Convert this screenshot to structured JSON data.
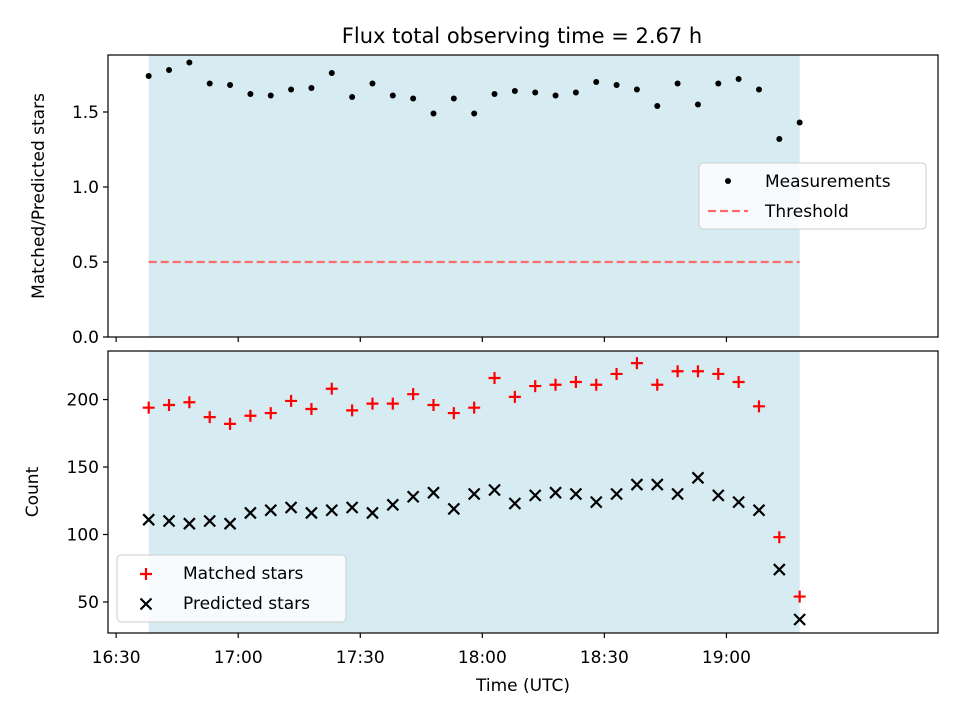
{
  "title": "Flux total observing time = 2.67 h",
  "colors": {
    "shade": "#add8e6",
    "measurement": "#000000",
    "threshold": "#ff6b6b",
    "matched": "#ff0000",
    "predicted": "#000000"
  },
  "chart_data": [
    {
      "type": "scatter",
      "panel": "top",
      "ylabel": "Matched/Predicted stars",
      "xlabel": "",
      "xlim": [
        "16:28",
        "19:52"
      ],
      "ylim": [
        0,
        1.88
      ],
      "yticks": [
        0.0,
        0.5,
        1.0,
        1.5
      ],
      "ytick_labels": [
        "0.0",
        "0.5",
        "1.0",
        "1.5"
      ],
      "xticks": [
        "16:30",
        "17:00",
        "17:30",
        "18:00",
        "18:30",
        "19:00"
      ],
      "shaded_span": [
        "16:38",
        "19:18"
      ],
      "legend": {
        "placement": "center-right",
        "entries": [
          "Measurements",
          "Threshold"
        ]
      },
      "threshold": {
        "name": "Threshold",
        "y": 0.5,
        "style": "dashed"
      },
      "series": [
        {
          "name": "Measurements",
          "marker": "dot",
          "x": [
            "16:38",
            "16:43",
            "16:48",
            "16:53",
            "16:58",
            "17:03",
            "17:08",
            "17:13",
            "17:18",
            "17:23",
            "17:28",
            "17:33",
            "17:38",
            "17:43",
            "17:48",
            "17:53",
            "17:58",
            "18:03",
            "18:08",
            "18:13",
            "18:18",
            "18:23",
            "18:28",
            "18:33",
            "18:38",
            "18:43",
            "18:48",
            "18:53",
            "18:58",
            "19:03",
            "19:08",
            "19:13",
            "19:18"
          ],
          "y": [
            1.74,
            1.78,
            1.83,
            1.69,
            1.68,
            1.62,
            1.61,
            1.65,
            1.66,
            1.76,
            1.6,
            1.69,
            1.61,
            1.59,
            1.49,
            1.59,
            1.49,
            1.62,
            1.64,
            1.63,
            1.61,
            1.63,
            1.7,
            1.68,
            1.65,
            1.54,
            1.69,
            1.55,
            1.69,
            1.72,
            1.65,
            1.32,
            1.43
          ]
        }
      ]
    },
    {
      "type": "scatter",
      "panel": "bottom",
      "ylabel": "Count",
      "xlabel": "Time (UTC)",
      "xlim": [
        "16:28",
        "19:52"
      ],
      "ylim": [
        27,
        236
      ],
      "yticks": [
        50,
        100,
        150,
        200
      ],
      "ytick_labels": [
        "50",
        "100",
        "150",
        "200"
      ],
      "xticks": [
        "16:30",
        "17:00",
        "17:30",
        "18:00",
        "18:30",
        "19:00"
      ],
      "xtick_labels": [
        "16:30",
        "17:00",
        "17:30",
        "18:00",
        "18:30",
        "19:00"
      ],
      "shaded_span": [
        "16:38",
        "19:18"
      ],
      "legend": {
        "placement": "lower-left",
        "entries": [
          "Matched stars",
          "Predicted stars"
        ]
      },
      "series": [
        {
          "name": "Matched stars",
          "marker": "plus",
          "x": [
            "16:38",
            "16:43",
            "16:48",
            "16:53",
            "16:58",
            "17:03",
            "17:08",
            "17:13",
            "17:18",
            "17:23",
            "17:28",
            "17:33",
            "17:38",
            "17:43",
            "17:48",
            "17:53",
            "17:58",
            "18:03",
            "18:08",
            "18:13",
            "18:18",
            "18:23",
            "18:28",
            "18:33",
            "18:38",
            "18:43",
            "18:48",
            "18:53",
            "18:58",
            "19:03",
            "19:08",
            "19:13",
            "19:18"
          ],
          "y": [
            194,
            196,
            198,
            187,
            182,
            188,
            190,
            199,
            193,
            208,
            192,
            197,
            197,
            204,
            196,
            190,
            194,
            216,
            202,
            210,
            211,
            213,
            211,
            219,
            227,
            211,
            221,
            221,
            219,
            213,
            195,
            98,
            54
          ]
        },
        {
          "name": "Predicted stars",
          "marker": "x",
          "x": [
            "16:38",
            "16:43",
            "16:48",
            "16:53",
            "16:58",
            "17:03",
            "17:08",
            "17:13",
            "17:18",
            "17:23",
            "17:28",
            "17:33",
            "17:38",
            "17:43",
            "17:48",
            "17:53",
            "17:58",
            "18:03",
            "18:08",
            "18:13",
            "18:18",
            "18:23",
            "18:28",
            "18:33",
            "18:38",
            "18:43",
            "18:48",
            "18:53",
            "18:58",
            "19:03",
            "19:08",
            "19:13",
            "19:18"
          ],
          "y": [
            111,
            110,
            108,
            110,
            108,
            116,
            118,
            120,
            116,
            118,
            120,
            116,
            122,
            128,
            131,
            119,
            130,
            133,
            123,
            129,
            131,
            130,
            124,
            130,
            137,
            137,
            130,
            142,
            129,
            124,
            118,
            74,
            37
          ]
        }
      ]
    }
  ]
}
